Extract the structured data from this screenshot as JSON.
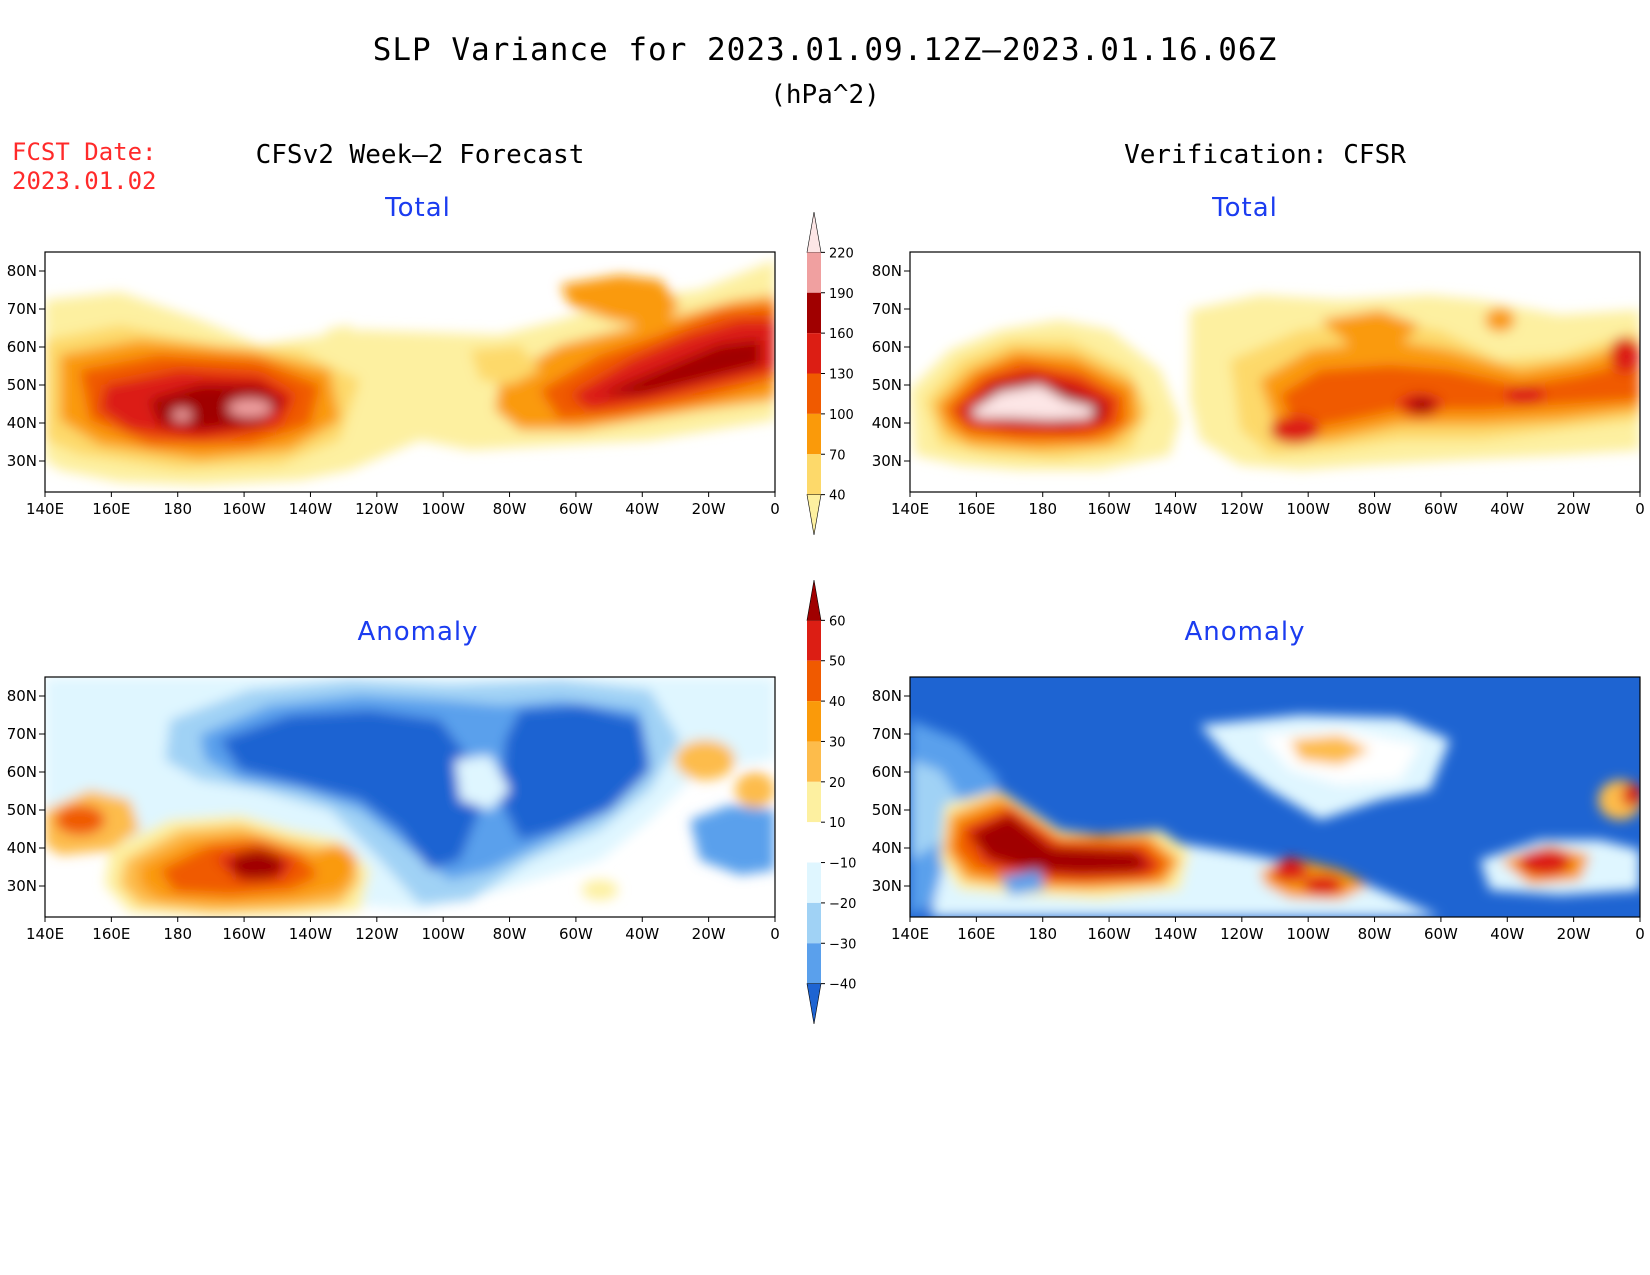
{
  "header": {
    "title": "SLP Variance for 2023.01.09.12Z–2023.01.16.06Z",
    "units": "(hPa^2)",
    "fcst_label": "FCST Date:",
    "fcst_date": "2023.01.02"
  },
  "columns": {
    "left": "CFSv2 Week–2 Forecast",
    "right": "Verification: CFSR"
  },
  "panels": {
    "fc_total": "Total",
    "vf_total": "Total",
    "fc_anom": "Anomaly",
    "vf_anom": "Anomaly"
  },
  "axes": {
    "lat_labels": [
      "80N",
      "70N",
      "60N",
      "50N",
      "40N",
      "30N"
    ],
    "lon_labels": [
      "140E",
      "160E",
      "180",
      "160W",
      "140W",
      "120W",
      "100W",
      "80W",
      "60W",
      "40W",
      "20W",
      "0"
    ]
  },
  "colorbars": {
    "total": {
      "levels": [
        "220",
        "190",
        "160",
        "130",
        "100",
        "70",
        "40"
      ],
      "colors": [
        "#fde6e6",
        "#f0a0a0",
        "#a00000",
        "#dc1e14",
        "#f05a00",
        "#fa9a0a",
        "#fdd96a",
        "#fdf0a0"
      ]
    },
    "anomaly": {
      "levels": [
        "60",
        "50",
        "40",
        "30",
        "20",
        "10",
        "−10",
        "−20",
        "−30",
        "−40"
      ],
      "colors": [
        "#a00000",
        "#dc1e14",
        "#f05a00",
        "#fa9a0a",
        "#fdbc4b",
        "#fdf0a0",
        "#ffffff",
        "#dff6ff",
        "#a0d2f5",
        "#5aa0ec",
        "#1e64d2"
      ]
    }
  },
  "colors": {
    "blue_text": "#1b3cf0",
    "red_text": "#ff2a2a"
  }
}
